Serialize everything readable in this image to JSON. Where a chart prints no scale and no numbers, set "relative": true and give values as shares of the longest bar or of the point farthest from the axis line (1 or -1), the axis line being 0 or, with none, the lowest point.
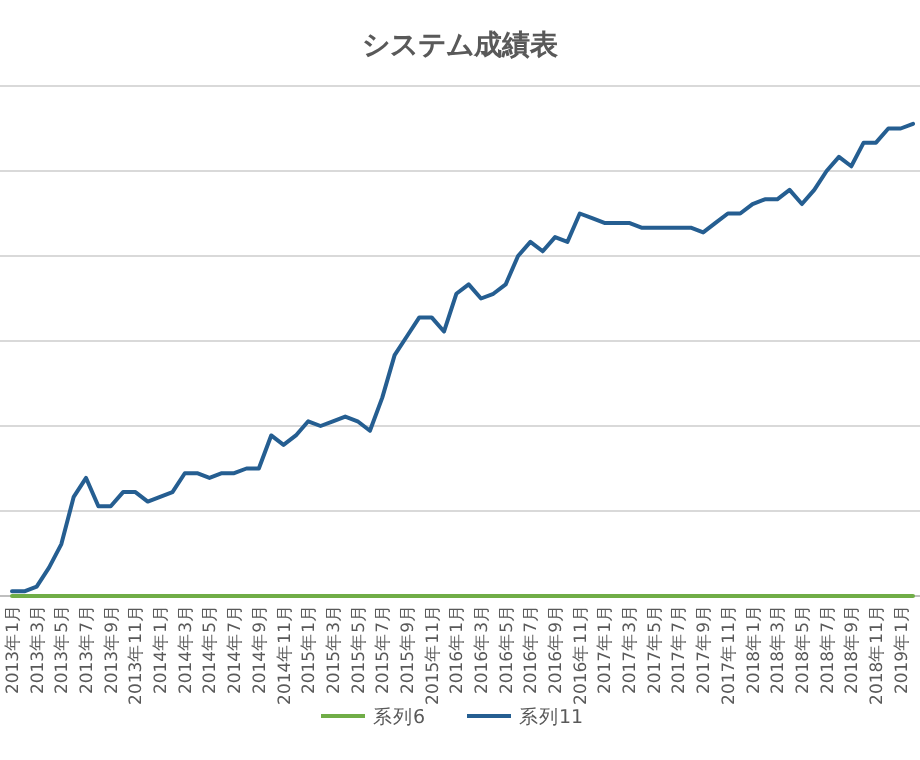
{
  "chart_data": {
    "type": "line",
    "title": "システム成績表",
    "relative": true,
    "grid": "y",
    "legend": "bottom",
    "marker": "none",
    "line_style": "solid",
    "categories": [
      "2013年1月",
      null,
      "2013年3月",
      null,
      "2013年5月",
      null,
      "2013年7月",
      null,
      "2013年9月",
      null,
      "2013年11月",
      null,
      "2014年1月",
      null,
      "2014年3月",
      null,
      "2014年5月",
      null,
      "2014年7月",
      null,
      "2014年9月",
      null,
      "2014年11月",
      null,
      "2015年1月",
      null,
      "2015年3月",
      null,
      "2015年5月",
      null,
      "2015年7月",
      null,
      "2015年9月",
      null,
      "2015年11月",
      null,
      "2016年1月",
      null,
      "2016年3月",
      null,
      "2016年5月",
      null,
      "2016年7月",
      null,
      "2016年9月",
      null,
      "2016年11月",
      null,
      "2017年1月",
      null,
      "2017年3月",
      null,
      "2017年5月",
      null,
      "2017年7月",
      null,
      "2017年9月",
      null,
      "2017年11月",
      null,
      "2018年1月",
      null,
      "2018年3月",
      null,
      "2018年5月",
      null,
      "2018年7月",
      null,
      "2018年9月",
      null,
      "2018年11月",
      null,
      "2019年1月",
      null
    ],
    "series": [
      {
        "name": "系列6",
        "color": "#70ad47",
        "values": [
          0,
          0,
          0,
          0,
          0,
          0,
          0,
          0,
          0,
          0,
          0,
          0,
          0,
          0,
          0,
          0,
          0,
          0,
          0,
          0,
          0,
          0,
          0,
          0,
          0,
          0,
          0,
          0,
          0,
          0,
          0,
          0,
          0,
          0,
          0,
          0,
          0,
          0,
          0,
          0,
          0,
          0,
          0,
          0,
          0,
          0,
          0,
          0,
          0,
          0,
          0,
          0,
          0,
          0,
          0,
          0,
          0,
          0,
          0,
          0,
          0,
          0,
          0,
          0,
          0,
          0,
          0,
          0,
          0,
          0,
          0,
          0,
          0,
          0
        ]
      },
      {
        "name": "系列11",
        "color": "#255e91",
        "values": [
          0.01,
          0.01,
          0.02,
          0.06,
          0.11,
          0.21,
          0.25,
          0.19,
          0.19,
          0.22,
          0.22,
          0.2,
          0.21,
          0.22,
          0.26,
          0.26,
          0.25,
          0.26,
          0.26,
          0.27,
          0.27,
          0.34,
          0.32,
          0.34,
          0.37,
          0.36,
          0.37,
          0.38,
          0.37,
          0.35,
          0.42,
          0.51,
          0.55,
          0.59,
          0.59,
          0.56,
          0.64,
          0.66,
          0.63,
          0.64,
          0.66,
          0.72,
          0.75,
          0.73,
          0.76,
          0.75,
          0.81,
          0.8,
          0.79,
          0.79,
          0.79,
          0.78,
          0.78,
          0.78,
          0.78,
          0.78,
          0.77,
          0.79,
          0.81,
          0.81,
          0.83,
          0.84,
          0.84,
          0.86,
          0.83,
          0.86,
          0.9,
          0.93,
          0.91,
          0.96,
          0.96,
          0.99,
          0.99,
          1
        ]
      }
    ]
  }
}
